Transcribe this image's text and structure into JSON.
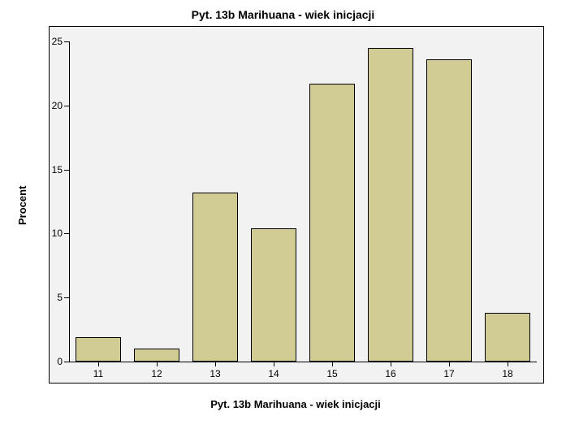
{
  "chart": {
    "type": "bar",
    "title": "Pyt. 13b Marihuana - wiek inicjacji",
    "title_fontsize": 14,
    "title_fontweight": "bold",
    "xlabel": "Pyt. 13b Marihuana - wiek inicjacji",
    "ylabel": "Procent",
    "label_fontsize": 13,
    "categories": [
      "11",
      "12",
      "13",
      "14",
      "15",
      "16",
      "17",
      "18"
    ],
    "values": [
      1.9,
      1.0,
      13.2,
      10.4,
      21.7,
      24.5,
      23.6,
      3.8
    ],
    "bar_color": "#d0cc94",
    "bar_border_color": "#000000",
    "bar_width": 0.78,
    "ylim": [
      0,
      25
    ],
    "yticks": [
      0,
      5,
      10,
      15,
      20,
      25
    ],
    "outer_background": "#f2f2f2",
    "inner_background": "#f2f2f2",
    "border_color": "#000000",
    "tick_fontsize": 12,
    "y_axis_offset": 24,
    "x_axis_offset": 26,
    "plot_padding_top": 18,
    "plot_padding_side": 8
  }
}
